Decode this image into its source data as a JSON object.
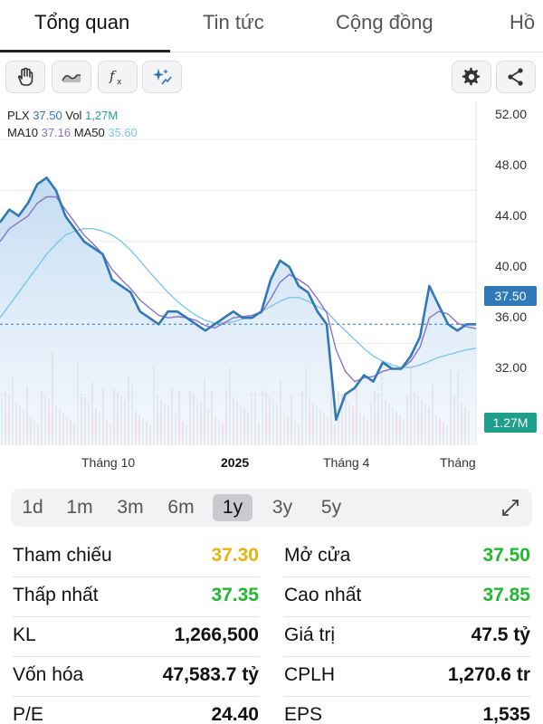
{
  "tabs": [
    "Tổng quan",
    "Tin tức",
    "Cộng đồng",
    "Hồ"
  ],
  "toolbar": {
    "left_icons": [
      "hand-icon",
      "wave-icon",
      "fx-icon",
      "sparkle-icon"
    ],
    "right_icons": [
      "gear-icon",
      "share-icon"
    ]
  },
  "legend": {
    "symbol": "PLX",
    "price": "37.50",
    "vol_label": "Vol",
    "vol": "1,27M",
    "ma10_label": "MA10",
    "ma10": "37.16",
    "ma50_label": "MA50",
    "ma50": "35.60"
  },
  "colors": {
    "price_line": "#2f78ba",
    "ma10": "#8a72c8",
    "ma50": "#7cc6f0",
    "volume": "#e9c7cb",
    "green": "#1fb82e",
    "yellow": "#e5b410"
  },
  "chart_data": {
    "type": "line",
    "title": "",
    "ylim": [
      28,
      54
    ],
    "yticks": [
      "52.00",
      "48.00",
      "44.00",
      "40.00",
      "36.00",
      "32.00"
    ],
    "xticks": [
      "Tháng 10",
      "2025",
      "Tháng 4",
      "Tháng"
    ],
    "current_price_label": "37.50",
    "current_volume_label": "1.27M",
    "x": [
      0,
      1,
      2,
      3,
      4,
      5,
      6,
      7,
      8,
      9,
      10,
      11,
      12,
      13,
      14,
      15,
      16,
      17,
      18,
      19,
      20,
      21,
      22,
      23,
      24,
      25,
      26,
      27,
      28,
      29,
      30,
      31,
      32,
      33,
      34,
      35,
      36,
      37,
      38,
      39,
      40,
      41,
      42,
      43,
      44,
      45,
      46,
      47,
      48,
      49,
      50,
      51
    ],
    "series": [
      {
        "name": "PLX",
        "values": [
          45.5,
          46.5,
          46.0,
          47.0,
          48.5,
          49.0,
          48.0,
          46.0,
          45.0,
          44.0,
          43.5,
          43.0,
          41.0,
          40.5,
          40.0,
          38.5,
          38.0,
          37.5,
          38.5,
          38.5,
          38.0,
          37.5,
          37.0,
          37.5,
          38.0,
          38.5,
          38.0,
          38.0,
          38.5,
          41.0,
          42.5,
          42.0,
          40.5,
          40.0,
          38.5,
          37.5,
          30.0,
          32.0,
          32.5,
          33.5,
          33.0,
          34.5,
          34.0,
          34.0,
          35.0,
          36.5,
          40.5,
          39.0,
          37.5,
          37.0,
          37.5,
          37.5
        ]
      },
      {
        "name": "MA10",
        "values": [
          44.0,
          45.0,
          45.5,
          46.0,
          47.0,
          47.5,
          47.5,
          46.5,
          45.5,
          44.5,
          43.8,
          43.0,
          41.8,
          41.0,
          40.3,
          39.4,
          38.8,
          38.2,
          38.0,
          38.1,
          38.0,
          37.8,
          37.4,
          37.2,
          37.6,
          38.0,
          38.1,
          38.2,
          38.4,
          39.5,
          40.8,
          41.4,
          41.0,
          40.5,
          39.5,
          38.4,
          35.5,
          33.8,
          33.0,
          33.3,
          33.4,
          33.8,
          34.0,
          34.0,
          34.6,
          35.7,
          38.0,
          38.5,
          38.3,
          37.6,
          37.3,
          37.16
        ]
      },
      {
        "name": "MA50",
        "values": [
          38.0,
          39.0,
          40.0,
          41.0,
          42.0,
          43.0,
          43.8,
          44.5,
          44.8,
          45.0,
          45.0,
          44.8,
          44.5,
          44.0,
          43.3,
          42.5,
          41.6,
          40.8,
          40.0,
          39.3,
          38.7,
          38.2,
          37.8,
          37.6,
          37.6,
          37.7,
          37.9,
          38.2,
          38.5,
          38.9,
          39.3,
          39.6,
          39.6,
          39.3,
          38.9,
          38.5,
          37.7,
          37.0,
          36.3,
          35.6,
          35.0,
          34.6,
          34.3,
          34.1,
          34.1,
          34.3,
          34.6,
          34.9,
          35.1,
          35.3,
          35.5,
          35.6
        ]
      }
    ]
  },
  "ranges": [
    "1d",
    "1m",
    "3m",
    "6m",
    "1y",
    "3y",
    "5y"
  ],
  "active_range": "1y",
  "stats_left": [
    {
      "label": "Tham chiếu",
      "value": "37.30",
      "color": "yellow"
    },
    {
      "label": "Thấp nhất",
      "value": "37.35",
      "color": "green"
    },
    {
      "label": "KL",
      "value": "1,266,500",
      "color": "black"
    },
    {
      "label": "Vốn hóa",
      "value": "47,583.7 tỷ",
      "color": "black"
    },
    {
      "label": "P/E",
      "value": "24.40",
      "color": "black"
    }
  ],
  "stats_right": [
    {
      "label": "Mở cửa",
      "value": "37.50",
      "color": "green"
    },
    {
      "label": "Cao nhất",
      "value": "37.85",
      "color": "green"
    },
    {
      "label": "Giá trị",
      "value": "47.5 tỷ",
      "color": "black"
    },
    {
      "label": "CPLH",
      "value": "1,270.6 tr",
      "color": "black"
    },
    {
      "label": "EPS",
      "value": "1,535",
      "color": "black"
    }
  ]
}
